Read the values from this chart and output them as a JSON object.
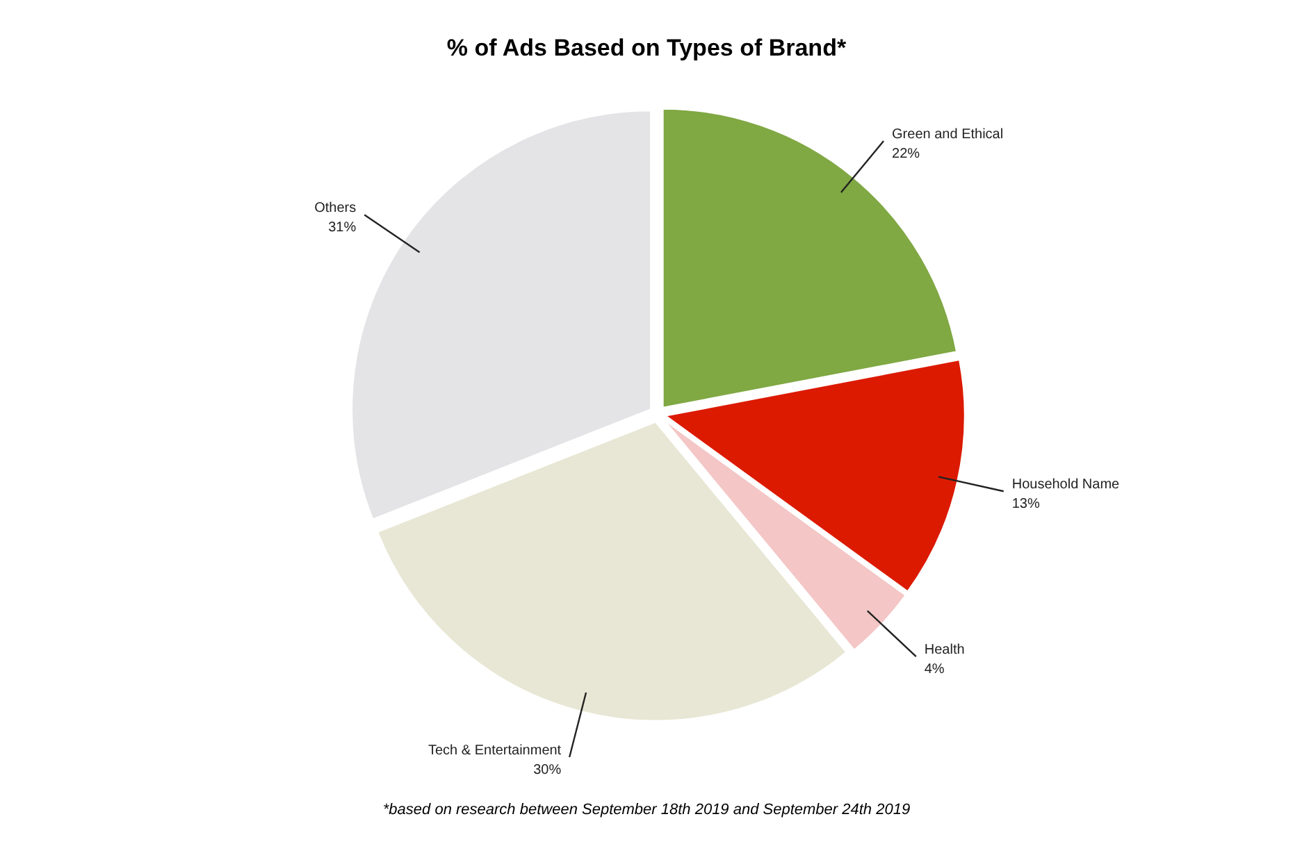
{
  "chart_data": {
    "type": "pie",
    "title": "% of Ads Based on Types of Brand*",
    "categories": [
      "Green and Ethical",
      "Household Name",
      "Health",
      "Tech & Entertainment",
      "Others"
    ],
    "values": [
      22,
      13,
      4,
      30,
      31
    ],
    "colors": [
      "#80a843",
      "#dc1a00",
      "#f4c6c6",
      "#e8e7d5",
      "#e4e4e6"
    ],
    "value_labels": [
      "22%",
      "13%",
      "4%",
      "30%",
      "31%"
    ],
    "annotations": [
      "*based on research between September 18th 2019 and September 24th 2019"
    ]
  }
}
